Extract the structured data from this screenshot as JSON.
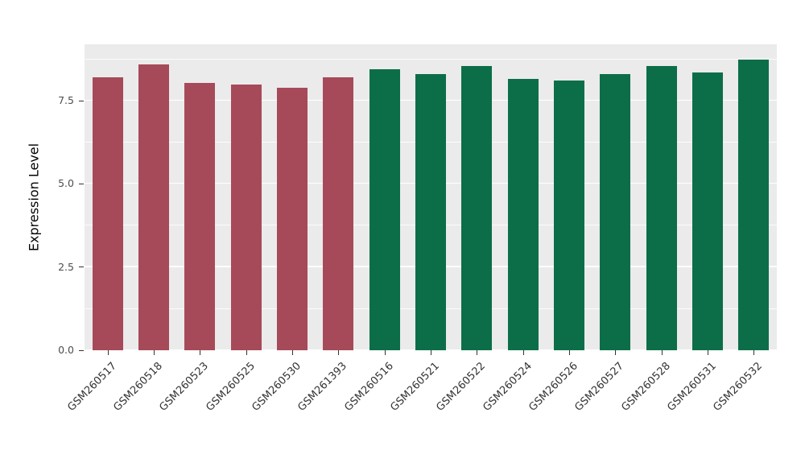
{
  "chart_data": {
    "type": "bar",
    "title": "",
    "xlabel": "",
    "ylabel": "Expression Level",
    "ylim": [
      0,
      9.2
    ],
    "yticks": [
      "0.0",
      "2.5",
      "5.0",
      "7.5"
    ],
    "ytick_values": [
      0,
      2.5,
      5.0,
      7.5
    ],
    "minor_tick_values": [
      1.25,
      3.75,
      6.25,
      8.75
    ],
    "grid": "on",
    "legend_position": "none",
    "panel_background": "#EBEBEB",
    "gridline_color": "#ffffff",
    "categories": [
      "GSM260517",
      "GSM260518",
      "GSM260523",
      "GSM260525",
      "GSM260530",
      "GSM261393",
      "GSM260516",
      "GSM260521",
      "GSM260522",
      "GSM260524",
      "GSM260526",
      "GSM260527",
      "GSM260528",
      "GSM260531",
      "GSM260532"
    ],
    "values": [
      8.2,
      8.6,
      8.05,
      8.0,
      7.9,
      8.2,
      8.45,
      8.3,
      8.55,
      8.15,
      8.1,
      8.3,
      8.55,
      8.35,
      8.75
    ],
    "bar_group_colors": {
      "group1": "#A64A5A",
      "group2": "#0C6E49"
    },
    "bar_groups": [
      "group1",
      "group1",
      "group1",
      "group1",
      "group1",
      "group1",
      "group2",
      "group2",
      "group2",
      "group2",
      "group2",
      "group2",
      "group2",
      "group2",
      "group2"
    ]
  }
}
